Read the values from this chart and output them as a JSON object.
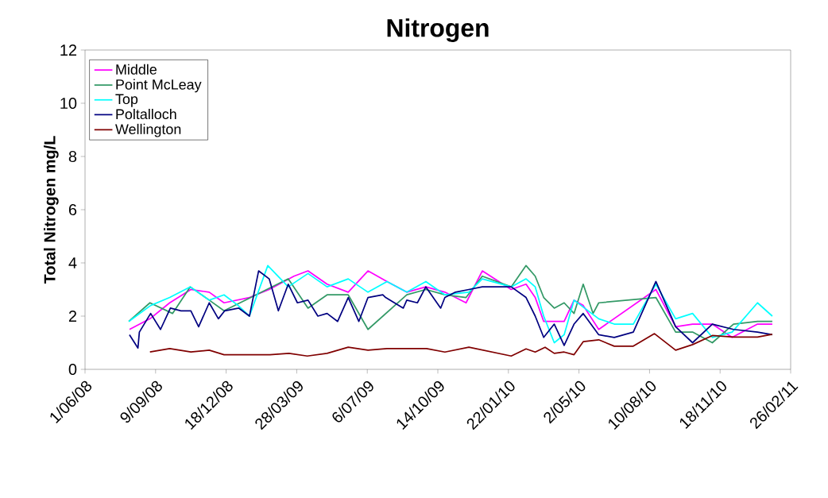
{
  "chart_data": {
    "type": "line",
    "title": "Nitrogen",
    "ylabel": "Total Nitrogen mg/L",
    "xlim": [
      "2008-06-01",
      "2011-02-26"
    ],
    "xticks": [
      {
        "value": "2008-06-01",
        "label": "1/06/08"
      },
      {
        "value": "2008-09-09",
        "label": "9/09/08"
      },
      {
        "value": "2008-12-18",
        "label": "18/12/08"
      },
      {
        "value": "2009-03-28",
        "label": "28/03/09"
      },
      {
        "value": "2009-07-06",
        "label": "6/07/09"
      },
      {
        "value": "2009-10-14",
        "label": "14/10/09"
      },
      {
        "value": "2010-01-22",
        "label": "22/01/10"
      },
      {
        "value": "2010-05-02",
        "label": "2/05/10"
      },
      {
        "value": "2010-08-10",
        "label": "10/08/10"
      },
      {
        "value": "2010-11-18",
        "label": "18/11/10"
      },
      {
        "value": "2011-02-26",
        "label": "26/02/11"
      }
    ],
    "ylim": [
      0,
      12
    ],
    "yticks": [
      0,
      2,
      4,
      6,
      8,
      10,
      12
    ],
    "legend": "top left",
    "series": [
      {
        "name": "Middle",
        "color": "#ff00ff",
        "x": [
          "2008-08-03",
          "2008-09-01",
          "2008-09-29",
          "2008-10-29",
          "2008-11-24",
          "2008-12-15",
          "2009-01-20",
          "2009-02-17",
          "2009-03-24",
          "2009-04-13",
          "2009-05-10",
          "2009-06-09",
          "2009-07-07",
          "2009-08-03",
          "2009-08-31",
          "2009-09-27",
          "2009-10-24",
          "2009-11-23",
          "2009-12-16",
          "2010-01-26",
          "2010-02-16",
          "2010-03-01",
          "2010-03-13",
          "2010-04-11",
          "2010-04-25",
          "2010-05-08",
          "2010-05-30",
          "2010-08-19",
          "2010-09-16",
          "2010-10-10",
          "2010-11-07",
          "2010-12-05",
          "2011-01-10",
          "2011-01-31"
        ],
        "values": [
          1.5,
          1.9,
          2.5,
          3.0,
          2.9,
          2.5,
          2.7,
          3.0,
          3.5,
          3.7,
          3.2,
          2.9,
          3.7,
          3.3,
          2.9,
          3.1,
          2.9,
          2.5,
          3.7,
          3.0,
          3.2,
          2.7,
          1.8,
          1.8,
          2.6,
          2.4,
          1.5,
          3.0,
          1.6,
          1.7,
          1.7,
          1.2,
          1.7,
          1.7
        ]
      },
      {
        "name": "Point McLeay",
        "color": "#339966",
        "x": [
          "2008-08-02",
          "2008-09-01",
          "2008-10-03",
          "2008-10-28",
          "2008-11-24",
          "2008-12-15",
          "2009-01-22",
          "2009-03-16",
          "2009-04-13",
          "2009-05-10",
          "2009-06-09",
          "2009-07-07",
          "2009-08-31",
          "2009-09-27",
          "2009-10-24",
          "2009-11-23",
          "2009-12-16",
          "2010-01-26",
          "2010-02-16",
          "2010-03-01",
          "2010-03-13",
          "2010-03-28",
          "2010-04-11",
          "2010-04-25",
          "2010-05-08",
          "2010-05-22",
          "2010-05-30",
          "2010-08-19",
          "2010-09-16",
          "2010-10-10",
          "2010-11-07",
          "2010-12-07",
          "2011-01-10",
          "2011-01-31"
        ],
        "values": [
          1.8,
          2.5,
          2.1,
          3.1,
          2.6,
          2.2,
          2.7,
          3.4,
          2.3,
          2.8,
          2.8,
          1.5,
          2.8,
          3.0,
          2.8,
          2.7,
          3.5,
          3.1,
          3.9,
          3.5,
          2.7,
          2.3,
          2.5,
          2.1,
          3.2,
          2.1,
          2.5,
          2.7,
          1.4,
          1.4,
          1.0,
          1.7,
          1.8,
          1.8
        ]
      },
      {
        "name": "Top",
        "color": "#00ffff",
        "x": [
          "2008-08-02",
          "2008-09-02",
          "2008-09-29",
          "2008-10-28",
          "2008-11-24",
          "2008-12-15",
          "2009-01-04",
          "2009-01-20",
          "2009-02-15",
          "2009-03-16",
          "2009-04-13",
          "2009-05-10",
          "2009-06-09",
          "2009-07-07",
          "2009-08-03",
          "2009-08-31",
          "2009-09-27",
          "2009-10-24",
          "2009-11-27",
          "2009-12-16",
          "2010-01-26",
          "2010-02-16",
          "2010-03-01",
          "2010-03-13",
          "2010-03-28",
          "2010-04-11",
          "2010-04-25",
          "2010-05-30",
          "2010-06-21",
          "2010-07-18",
          "2010-08-19",
          "2010-09-16",
          "2010-10-10",
          "2010-11-07",
          "2010-12-05",
          "2011-01-10",
          "2011-01-31"
        ],
        "values": [
          1.8,
          2.4,
          2.7,
          3.1,
          2.6,
          2.8,
          2.4,
          2.0,
          3.9,
          3.1,
          3.6,
          3.1,
          3.4,
          2.9,
          3.3,
          2.9,
          3.3,
          2.8,
          2.9,
          3.4,
          3.1,
          3.4,
          3.1,
          2.0,
          1.0,
          1.3,
          2.6,
          1.9,
          1.7,
          1.7,
          3.2,
          1.9,
          2.1,
          1.2,
          1.4,
          2.5,
          2.0
        ]
      },
      {
        "name": "Poltalloch",
        "color": "#000080",
        "x": [
          "2008-08-03",
          "2008-08-15",
          "2008-08-17",
          "2008-09-02",
          "2008-09-16",
          "2008-09-30",
          "2008-10-15",
          "2008-10-29",
          "2008-11-09",
          "2008-11-24",
          "2008-12-07",
          "2008-12-16",
          "2009-01-05",
          "2009-01-20",
          "2009-02-02",
          "2009-02-17",
          "2009-03-02",
          "2009-03-16",
          "2009-03-29",
          "2009-04-13",
          "2009-04-27",
          "2009-05-10",
          "2009-05-25",
          "2009-06-09",
          "2009-06-24",
          "2009-07-07",
          "2009-07-28",
          "2009-08-01",
          "2009-08-26",
          "2009-08-31",
          "2009-09-15",
          "2009-09-27",
          "2009-10-18",
          "2009-10-24",
          "2009-11-08",
          "2009-11-27",
          "2009-12-16",
          "2010-01-26",
          "2010-02-16",
          "2010-03-01",
          "2010-03-13",
          "2010-03-28",
          "2010-04-11",
          "2010-04-25",
          "2010-05-08",
          "2010-05-30",
          "2010-06-21",
          "2010-07-18",
          "2010-08-19",
          "2010-09-16",
          "2010-10-10",
          "2010-11-07",
          "2010-12-07",
          "2011-01-10",
          "2011-01-31"
        ],
        "values": [
          1.3,
          0.8,
          1.4,
          2.1,
          1.5,
          2.3,
          2.2,
          2.2,
          1.6,
          2.5,
          1.9,
          2.2,
          2.3,
          2.0,
          3.7,
          3.4,
          2.2,
          3.2,
          2.5,
          2.6,
          2.0,
          2.1,
          1.8,
          2.7,
          1.8,
          2.7,
          2.8,
          2.7,
          2.3,
          2.6,
          2.5,
          3.1,
          2.3,
          2.7,
          2.9,
          3.0,
          3.1,
          3.1,
          2.7,
          2.0,
          1.2,
          1.7,
          0.9,
          1.7,
          2.1,
          1.3,
          1.2,
          1.4,
          3.3,
          1.6,
          1.0,
          1.7,
          1.5,
          1.4,
          1.3
        ]
      },
      {
        "name": "Wellington",
        "color": "#800000",
        "x": [
          "2008-09-01",
          "2008-09-29",
          "2008-10-29",
          "2008-11-24",
          "2008-12-15",
          "2009-01-20",
          "2009-02-18",
          "2009-03-17",
          "2009-04-12",
          "2009-05-10",
          "2009-06-09",
          "2009-07-07",
          "2009-08-03",
          "2009-09-28",
          "2009-10-24",
          "2009-11-27",
          "2010-01-26",
          "2010-02-16",
          "2010-03-01",
          "2010-03-15",
          "2010-03-28",
          "2010-04-11",
          "2010-04-25",
          "2010-05-08",
          "2010-05-30",
          "2010-06-21",
          "2010-07-18",
          "2010-08-17",
          "2010-09-16",
          "2010-10-10",
          "2010-11-07",
          "2010-12-07",
          "2011-01-10",
          "2011-01-31"
        ],
        "values": [
          0.65,
          0.78,
          0.65,
          0.72,
          0.55,
          0.55,
          0.55,
          0.6,
          0.5,
          0.6,
          0.83,
          0.72,
          0.78,
          0.78,
          0.65,
          0.83,
          0.5,
          0.77,
          0.65,
          0.83,
          0.6,
          0.65,
          0.55,
          1.04,
          1.11,
          0.87,
          0.87,
          1.34,
          0.72,
          0.93,
          1.27,
          1.21,
          1.21,
          1.32
        ]
      }
    ]
  }
}
